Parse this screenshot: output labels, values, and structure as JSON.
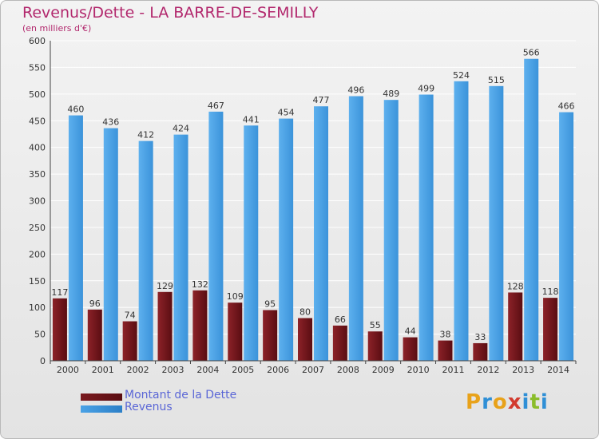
{
  "header": {
    "title": "Revenus/Dette - LA BARRE-DE-SEMILLY",
    "subtitle": "(en milliers d'€)"
  },
  "legend": {
    "items": [
      {
        "label": "Montant de la Dette",
        "color": "#7a1a1f"
      },
      {
        "label": "Revenus",
        "color": "#4aa2e6"
      }
    ]
  },
  "brand": {
    "logo_letters": [
      {
        "ch": "P",
        "color": "#e8a21a"
      },
      {
        "ch": "r",
        "color": "#2f8fd6"
      },
      {
        "ch": "o",
        "color": "#e8a21a"
      },
      {
        "ch": "x",
        "color": "#d23b2f"
      },
      {
        "ch": "i",
        "color": "#2f8fd6"
      },
      {
        "ch": "t",
        "color": "#8bbd2b"
      },
      {
        "ch": "i",
        "color": "#2f8fd6"
      }
    ]
  },
  "colors": {
    "title": "#b2286d",
    "debt": "#7a1a1f",
    "revenue": "#4aa2e6",
    "grid": "#ffffff"
  },
  "chart_data": {
    "type": "bar",
    "categories": [
      "2000",
      "2001",
      "2002",
      "2003",
      "2004",
      "2005",
      "2006",
      "2007",
      "2008",
      "2009",
      "2010",
      "2011",
      "2012",
      "2013",
      "2014"
    ],
    "series": [
      {
        "name": "Montant de la Dette",
        "values": [
          117,
          96,
          74,
          129,
          132,
          109,
          95,
          80,
          66,
          55,
          44,
          38,
          33,
          128,
          118
        ]
      },
      {
        "name": "Revenus",
        "values": [
          460,
          436,
          412,
          424,
          467,
          441,
          454,
          477,
          496,
          489,
          499,
          524,
          515,
          566,
          466
        ]
      }
    ],
    "ylim": [
      0,
      600
    ],
    "yticks": [
      0,
      50,
      100,
      150,
      200,
      250,
      300,
      350,
      400,
      450,
      500,
      550,
      600
    ],
    "grid": true,
    "legend_position": "bottom-left"
  }
}
